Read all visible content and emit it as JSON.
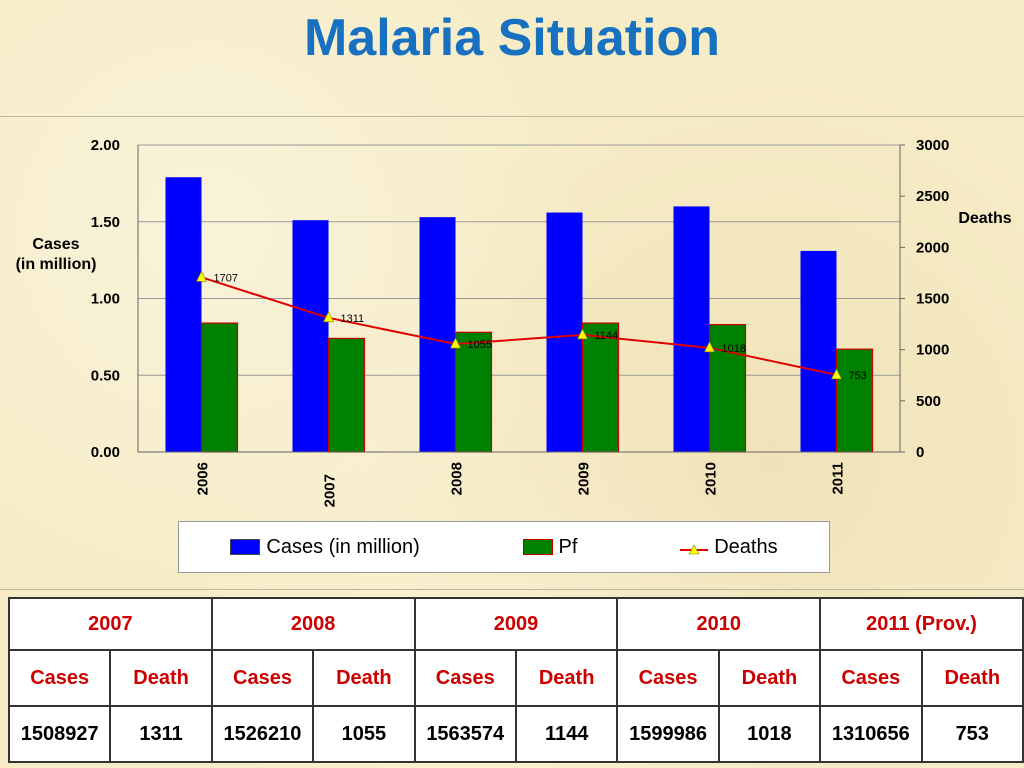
{
  "title": "Malaria Situation",
  "colors": {
    "title": "#1770c0",
    "cases": "#0000ff",
    "pf": "#008000",
    "deaths": "#e00000",
    "marker": "#ffff00",
    "table_header": "#cc0000"
  },
  "chart_data": {
    "type": "bar",
    "categories": [
      "2006",
      "2007",
      "2008",
      "2009",
      "2010",
      "2011"
    ],
    "series": [
      {
        "name": "Cases (in million)",
        "type": "bar",
        "axis": "left",
        "values": [
          1.79,
          1.51,
          1.53,
          1.56,
          1.6,
          1.31
        ]
      },
      {
        "name": "Pf",
        "type": "bar",
        "axis": "left",
        "values": [
          0.84,
          0.74,
          0.78,
          0.84,
          0.83,
          0.67
        ]
      },
      {
        "name": "Deaths",
        "type": "line",
        "axis": "right",
        "values": [
          1707,
          1311,
          1055,
          1144,
          1018,
          753
        ]
      }
    ],
    "point_labels": [
      "1707",
      "1311",
      "1055",
      "1144",
      "1018",
      "753"
    ],
    "ylabel_left": [
      "Cases",
      "(in million)"
    ],
    "ylabel_right": "Deaths",
    "ylim_left": [
      0,
      2
    ],
    "ylim_right": [
      0,
      3000
    ],
    "left_ticks": [
      "0.00",
      "0.50",
      "1.00",
      "1.50",
      "2.00"
    ],
    "right_ticks": [
      "0",
      "500",
      "1000",
      "1500",
      "2000",
      "2500",
      "3000"
    ],
    "grid": true,
    "legend_position": "bottom"
  },
  "table": {
    "years": [
      "2007",
      "2008",
      "2009",
      "2010",
      "2011 (Prov.)"
    ],
    "subheaders": [
      "Cases",
      "Death",
      "Cases",
      "Death",
      "Cases",
      "Death",
      "Cases",
      "Death",
      "Cases",
      "Death"
    ],
    "values": [
      "1508927",
      "1311",
      "1526210",
      "1055",
      "1563574",
      "1144",
      "1599986",
      "1018",
      "1310656",
      "753"
    ]
  }
}
